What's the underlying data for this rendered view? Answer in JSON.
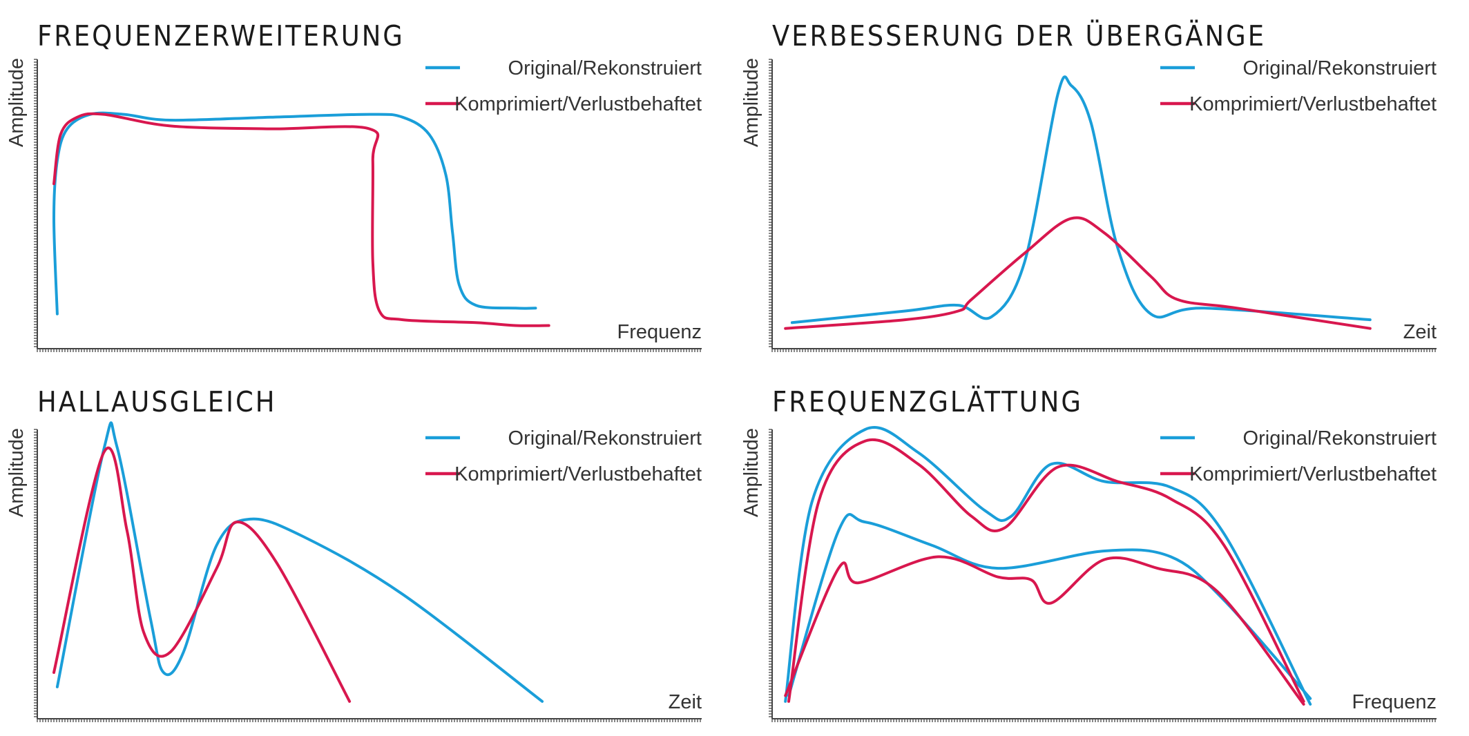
{
  "colors": {
    "original": "#1a9ed9",
    "compressed": "#d8174e"
  },
  "chart_data": [
    {
      "type": "line",
      "title": "FREQUENZERWEITERUNG",
      "xlabel": "Frequenz",
      "ylabel": "Amplitude",
      "legend": "top-right",
      "xlim": [
        0,
        1
      ],
      "ylim": [
        0,
        1
      ],
      "series": [
        {
          "name": "Original/Rekonstruiert",
          "color": "#1a9ed9",
          "points": [
            [
              0.03,
              0.12
            ],
            [
              0.025,
              0.45
            ],
            [
              0.03,
              0.65
            ],
            [
              0.045,
              0.76
            ],
            [
              0.08,
              0.81
            ],
            [
              0.13,
              0.81
            ],
            [
              0.2,
              0.79
            ],
            [
              0.35,
              0.8
            ],
            [
              0.5,
              0.81
            ],
            [
              0.55,
              0.8
            ],
            [
              0.59,
              0.74
            ],
            [
              0.615,
              0.6
            ],
            [
              0.625,
              0.4
            ],
            [
              0.635,
              0.22
            ],
            [
              0.66,
              0.15
            ],
            [
              0.72,
              0.14
            ],
            [
              0.75,
              0.14
            ]
          ]
        },
        {
          "name": "Komprimiert/Verlustbehaftet",
          "color": "#d8174e",
          "points": [
            [
              0.025,
              0.57
            ],
            [
              0.035,
              0.74
            ],
            [
              0.06,
              0.8
            ],
            [
              0.1,
              0.81
            ],
            [
              0.2,
              0.77
            ],
            [
              0.35,
              0.76
            ],
            [
              0.5,
              0.76
            ],
            [
              0.505,
              0.65
            ],
            [
              0.505,
              0.3
            ],
            [
              0.515,
              0.13
            ],
            [
              0.55,
              0.1
            ],
            [
              0.66,
              0.09
            ],
            [
              0.72,
              0.08
            ],
            [
              0.77,
              0.08
            ]
          ]
        }
      ]
    },
    {
      "type": "line",
      "title": "VERBESSERUNG DER ÜBERGÄNGE",
      "xlabel": "Zeit",
      "ylabel": "Amplitude",
      "legend": "top-right",
      "xlim": [
        0,
        1
      ],
      "ylim": [
        0,
        1
      ],
      "series": [
        {
          "name": "Original/Rekonstruiert",
          "color": "#1a9ed9",
          "points": [
            [
              0.03,
              0.09
            ],
            [
              0.2,
              0.13
            ],
            [
              0.28,
              0.15
            ],
            [
              0.33,
              0.11
            ],
            [
              0.38,
              0.3
            ],
            [
              0.43,
              0.88
            ],
            [
              0.45,
              0.91
            ],
            [
              0.48,
              0.78
            ],
            [
              0.52,
              0.35
            ],
            [
              0.57,
              0.12
            ],
            [
              0.65,
              0.14
            ],
            [
              0.9,
              0.1
            ]
          ]
        },
        {
          "name": "Komprimiert/Verlustbehaftet",
          "color": "#d8174e",
          "points": [
            [
              0.02,
              0.07
            ],
            [
              0.2,
              0.1
            ],
            [
              0.28,
              0.13
            ],
            [
              0.3,
              0.17
            ],
            [
              0.38,
              0.33
            ],
            [
              0.45,
              0.45
            ],
            [
              0.5,
              0.4
            ],
            [
              0.57,
              0.25
            ],
            [
              0.61,
              0.17
            ],
            [
              0.7,
              0.14
            ],
            [
              0.9,
              0.07
            ]
          ]
        }
      ]
    },
    {
      "type": "line",
      "title": "HALLAUSGLEICH",
      "xlabel": "Zeit",
      "ylabel": "Amplitude",
      "legend": "top-right",
      "xlim": [
        0,
        1
      ],
      "ylim": [
        0,
        1
      ],
      "series": [
        {
          "name": "Original/Rekonstruiert",
          "color": "#1a9ed9",
          "points": [
            [
              0.03,
              0.11
            ],
            [
              0.1,
              0.93
            ],
            [
              0.12,
              0.94
            ],
            [
              0.17,
              0.35
            ],
            [
              0.19,
              0.16
            ],
            [
              0.22,
              0.23
            ],
            [
              0.27,
              0.6
            ],
            [
              0.32,
              0.69
            ],
            [
              0.4,
              0.63
            ],
            [
              0.55,
              0.43
            ],
            [
              0.76,
              0.06
            ]
          ]
        },
        {
          "name": "Komprimiert/Verlustbehaftet",
          "color": "#d8174e",
          "points": [
            [
              0.025,
              0.16
            ],
            [
              0.1,
              0.92
            ],
            [
              0.135,
              0.65
            ],
            [
              0.16,
              0.3
            ],
            [
              0.2,
              0.23
            ],
            [
              0.27,
              0.52
            ],
            [
              0.3,
              0.68
            ],
            [
              0.36,
              0.54
            ],
            [
              0.47,
              0.06
            ]
          ]
        }
      ]
    },
    {
      "type": "line",
      "title": "FREQUENZGLÄTTUNG",
      "xlabel": "Frequenz",
      "ylabel": "Amplitude",
      "legend": "top-right",
      "xlim": [
        0,
        1
      ],
      "ylim": [
        0,
        1
      ],
      "series": [
        {
          "name": "Original/Rekonstruiert",
          "color": "#1a9ed9",
          "points": [
            [
              0.02,
              0.06
            ],
            [
              0.06,
              0.75
            ],
            [
              0.14,
              1.0
            ],
            [
              0.22,
              0.92
            ],
            [
              0.32,
              0.72
            ],
            [
              0.36,
              0.7
            ],
            [
              0.42,
              0.88
            ],
            [
              0.5,
              0.82
            ],
            [
              0.6,
              0.8
            ],
            [
              0.68,
              0.64
            ],
            [
              0.81,
              0.05
            ]
          ]
        },
        {
          "name": "Original/Rekonstruiert",
          "color": "#1a9ed9",
          "points": [
            [
              0.025,
              0.08
            ],
            [
              0.1,
              0.65
            ],
            [
              0.14,
              0.68
            ],
            [
              0.24,
              0.6
            ],
            [
              0.34,
              0.52
            ],
            [
              0.5,
              0.58
            ],
            [
              0.6,
              0.56
            ],
            [
              0.68,
              0.41
            ],
            [
              0.81,
              0.07
            ]
          ]
        },
        {
          "name": "Komprimiert/Verlustbehaftet",
          "color": "#d8174e",
          "points": [
            [
              0.025,
              0.06
            ],
            [
              0.07,
              0.75
            ],
            [
              0.14,
              0.96
            ],
            [
              0.22,
              0.88
            ],
            [
              0.3,
              0.7
            ],
            [
              0.35,
              0.66
            ],
            [
              0.43,
              0.87
            ],
            [
              0.52,
              0.82
            ],
            [
              0.6,
              0.76
            ],
            [
              0.68,
              0.6
            ],
            [
              0.8,
              0.06
            ]
          ]
        },
        {
          "name": "Komprimiert/Verlustbehaftet",
          "color": "#d8174e",
          "points": [
            [
              0.02,
              0.08
            ],
            [
              0.1,
              0.52
            ],
            [
              0.13,
              0.47
            ],
            [
              0.25,
              0.56
            ],
            [
              0.34,
              0.49
            ],
            [
              0.39,
              0.48
            ],
            [
              0.42,
              0.4
            ],
            [
              0.5,
              0.55
            ],
            [
              0.58,
              0.52
            ],
            [
              0.67,
              0.44
            ],
            [
              0.8,
              0.05
            ]
          ]
        }
      ]
    }
  ]
}
